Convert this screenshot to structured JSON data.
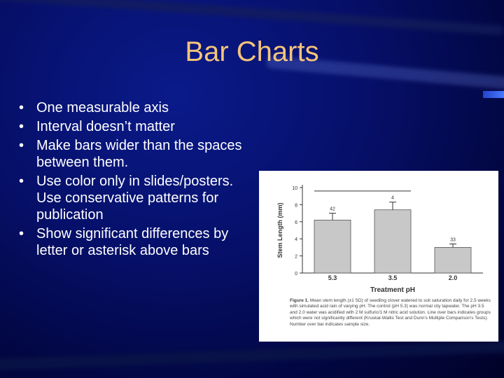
{
  "slide": {
    "title": "Bar Charts",
    "bullets": [
      "One measurable axis",
      "Interval doesn’t matter",
      "Make bars wider than the spaces between them.",
      "Use color only in slides/posters.  Use conservative patterns for publication",
      "Show significant differences by letter or asterisk above bars"
    ]
  },
  "figure": {
    "caption_label": "Figure 1.",
    "caption_text": "Mean stem length (±1 SD) of seedling clover watered to soil saturation daily for 2.5 weeks with simulated acid rain of varying pH. The control (pH 5.3) was normal city tapwater. The pH 3.5 and 2.0 water was acidified with 2 M sulfuric/1 M nitric acid solution. Line over bars indicates groups which were not significantly different (Kruskal-Wallis Test and Dunn's Multiple Comparison's Tests). Number over bar indicates sample size."
  },
  "chart_data": {
    "type": "bar",
    "categories": [
      "5.3",
      "3.5",
      "2.0"
    ],
    "values": [
      6.2,
      7.4,
      3.0
    ],
    "errors": [
      0.8,
      0.9,
      0.4
    ],
    "sample_sizes": [
      "42",
      "4",
      "33"
    ],
    "xlabel": "Treatment pH",
    "ylabel": "Stem Length (mm)",
    "ylim": [
      0,
      10
    ],
    "yticks": [
      0,
      2,
      4,
      6,
      8,
      10
    ],
    "significance_line": {
      "from_category": "5.3",
      "to_category": "3.5",
      "y": 9.6
    },
    "bar_color": "#c8c8c8",
    "grid": false
  }
}
